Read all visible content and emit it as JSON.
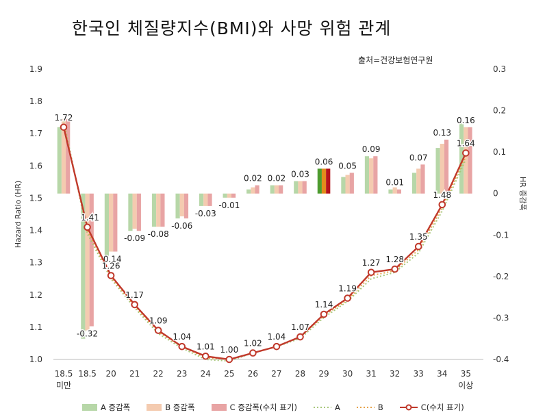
{
  "header": {
    "title": "한국인 체질량지수(BMI)와 사망 위험 관계",
    "source": "출처=건강보험연구원"
  },
  "colors": {
    "A_bar": "#b7d7a8",
    "B_bar": "#f4cbb0",
    "C_bar": "#e8a4a4",
    "C_line": "#c0392b",
    "line_A": "#a7c77a",
    "line_B": "#e7a34a",
    "highlight_A": "#4d9b2f",
    "highlight_B": "#e38b1c",
    "highlight_C": "#b5121b"
  },
  "chart_data": {
    "type": "bar+line",
    "categories": [
      "18.5\n미만",
      "18.5",
      "20",
      "21",
      "22",
      "23",
      "24",
      "25",
      "26",
      "27",
      "28",
      "29",
      "30",
      "31",
      "32",
      "33",
      "34",
      "35\n이상"
    ],
    "ylabel": "Hazard Ratio (HR)",
    "y2label": "HR 증감폭",
    "ylim": [
      1.0,
      1.9
    ],
    "y2lim": [
      -0.4,
      0.3
    ],
    "yticks": [
      "1.0",
      "1.1",
      "1.2",
      "1.3",
      "1.4",
      "1.5",
      "1.6",
      "1.7",
      "1.8",
      "1.9"
    ],
    "y2ticks": [
      "-0.4",
      "-0.3",
      "-0.2",
      "-0.1",
      "0",
      "0.1",
      "0.2",
      "0.3"
    ],
    "bar_series": [
      {
        "name": "A 증감폭",
        "values": [
          0.16,
          -0.35,
          -0.15,
          -0.09,
          -0.08,
          -0.06,
          -0.03,
          -0.01,
          0.01,
          0.02,
          0.03,
          0.06,
          0.04,
          0.09,
          0.01,
          0.05,
          0.11,
          0.17
        ]
      },
      {
        "name": "B 증감폭",
        "values": [
          0.18,
          -0.33,
          -0.14,
          -0.085,
          -0.08,
          -0.055,
          -0.03,
          -0.01,
          0.015,
          0.02,
          0.03,
          0.06,
          0.045,
          0.085,
          0.015,
          0.06,
          0.12,
          0.16
        ]
      },
      {
        "name": "C 증감폭(수치 표기)",
        "values": [
          0.18,
          -0.32,
          -0.14,
          -0.09,
          -0.08,
          -0.06,
          -0.03,
          -0.01,
          0.02,
          0.02,
          0.03,
          0.06,
          0.05,
          0.09,
          0.01,
          0.07,
          0.13,
          0.16
        ]
      }
    ],
    "bar_labels": [
      "",
      "-0.32",
      "-0.14",
      "-0.09",
      "-0.08",
      "-0.06",
      "-0.03",
      "-0.01",
      "0.02",
      "0.02",
      "0.03",
      "0.06",
      "0.05",
      "0.09",
      "0.01",
      "0.07",
      "0.13",
      "0.16"
    ],
    "line_series": [
      {
        "name": "A",
        "values": [
          1.74,
          1.39,
          1.25,
          1.16,
          1.08,
          1.035,
          1.0,
          0.995,
          1.02,
          1.04,
          1.065,
          1.13,
          1.18,
          1.25,
          1.27,
          1.33,
          1.46,
          1.62
        ]
      },
      {
        "name": "B",
        "values": [
          1.73,
          1.4,
          1.255,
          1.165,
          1.085,
          1.04,
          1.005,
          1.0,
          1.02,
          1.04,
          1.07,
          1.135,
          1.185,
          1.26,
          1.275,
          1.34,
          1.47,
          1.63
        ]
      },
      {
        "name": "C(수치 표기)",
        "values": [
          1.72,
          1.41,
          1.26,
          1.17,
          1.09,
          1.04,
          1.01,
          1.0,
          1.02,
          1.04,
          1.07,
          1.14,
          1.19,
          1.27,
          1.28,
          1.35,
          1.48,
          1.64
        ]
      }
    ],
    "highlight_category": "29",
    "legend_position": "bottom",
    "grid": false
  },
  "legend": [
    {
      "label": "A 증감폭",
      "kind": "bar",
      "color": "#b7d7a8"
    },
    {
      "label": "B 증감폭",
      "kind": "bar",
      "color": "#f4cbb0"
    },
    {
      "label": "C 증감폭(수치 표기)",
      "kind": "bar",
      "color": "#e8a4a4"
    },
    {
      "label": "A",
      "kind": "dotted",
      "color": "#a7c77a"
    },
    {
      "label": "B",
      "kind": "dotted",
      "color": "#e7a34a"
    },
    {
      "label": "C(수치 표기)",
      "kind": "marker-line",
      "color": "#c0392b"
    }
  ]
}
